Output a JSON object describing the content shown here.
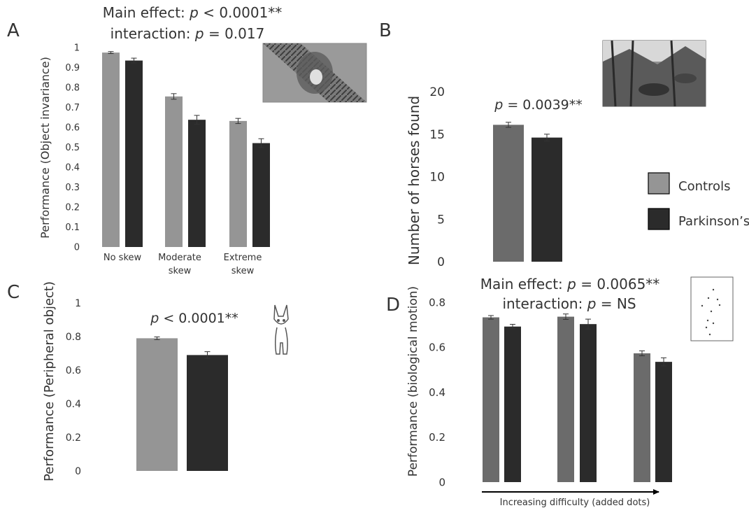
{
  "colors": {
    "controls_light": "#959595",
    "controls_dark": "#6b6b6b",
    "parkinsons": "#2b2b2b"
  },
  "legend": {
    "controls": "Controls",
    "parkinsons": "Parkinson’s"
  },
  "chart_data": [
    {
      "panel": "A",
      "type": "bar",
      "annotation": {
        "line1_prefix": "Main effect: ",
        "line1_p": "p",
        "line1_suffix": " < 0.0001**",
        "line2_prefix": "interaction: ",
        "line2_p": "p",
        "line2_suffix": " = 0.017"
      },
      "ylabel": "Performance (Object invariance)",
      "ylim": [
        0,
        1
      ],
      "yticks": [
        "0",
        "0.1",
        "0.2",
        "0.3",
        "0.4",
        "0.5",
        "0.6",
        "0.7",
        "0.8",
        "0.9",
        "1"
      ],
      "categories": [
        [
          "No skew"
        ],
        [
          "Moderate",
          "skew"
        ],
        [
          "Extreme",
          "skew"
        ]
      ],
      "series": [
        {
          "name": "Controls",
          "values": [
            0.975,
            0.755,
            0.632
          ],
          "err": [
            0.005,
            0.014,
            0.013
          ]
        },
        {
          "name": "Parkinson’s",
          "values": [
            0.935,
            0.638,
            0.521
          ],
          "err": [
            0.012,
            0.022,
            0.022
          ]
        }
      ],
      "thumbnail": "skewed-face-image"
    },
    {
      "panel": "B",
      "type": "bar",
      "annotation": {
        "p": "p",
        "suffix": " = 0.0039**"
      },
      "ylabel": "Number of horses found",
      "ylim": [
        0,
        20
      ],
      "yticks": [
        "0",
        "5",
        "10",
        "15",
        "20"
      ],
      "series": [
        {
          "name": "Controls",
          "values": [
            16.1
          ],
          "err": [
            0.3
          ]
        },
        {
          "name": "Parkinson’s",
          "values": [
            14.6
          ],
          "err": [
            0.4
          ]
        }
      ],
      "thumbnail": "hidden-horses-painting"
    },
    {
      "panel": "C",
      "type": "bar",
      "annotation": {
        "p": "p",
        "suffix": " < 0.0001**"
      },
      "ylabel": "Performance  (Peripheral object)",
      "ylim": [
        0,
        1
      ],
      "yticks": [
        "0",
        "0.2",
        "0.4",
        "0.6",
        "0.8",
        "1"
      ],
      "series": [
        {
          "name": "Controls",
          "values": [
            0.79
          ],
          "err": [
            0.008
          ]
        },
        {
          "name": "Parkinson’s",
          "values": [
            0.69
          ],
          "err": [
            0.02
          ]
        }
      ],
      "thumbnail": "dog-drawing"
    },
    {
      "panel": "D",
      "type": "bar",
      "annotation": {
        "line1_prefix": "Main effect: ",
        "line1_p": "p",
        "line1_suffix": " = 0.0065**",
        "line2_prefix": "interaction: ",
        "line2_p": "p",
        "line2_suffix": " = NS"
      },
      "ylabel": "Performance (biological motion)",
      "ylim": [
        0,
        0.8
      ],
      "yticks": [
        "0",
        "0.2",
        "0.4",
        "0.6",
        "0.8"
      ],
      "xlabel": "Increasing difficulty (added dots)",
      "series": [
        {
          "name": "Controls",
          "values": [
            0.733,
            0.736,
            0.573
          ],
          "err": [
            0.008,
            0.012,
            0.011
          ]
        },
        {
          "name": "Parkinson’s",
          "values": [
            0.692,
            0.703,
            0.535
          ],
          "err": [
            0.01,
            0.022,
            0.018
          ]
        }
      ],
      "thumbnail": "point-light-walker"
    }
  ]
}
